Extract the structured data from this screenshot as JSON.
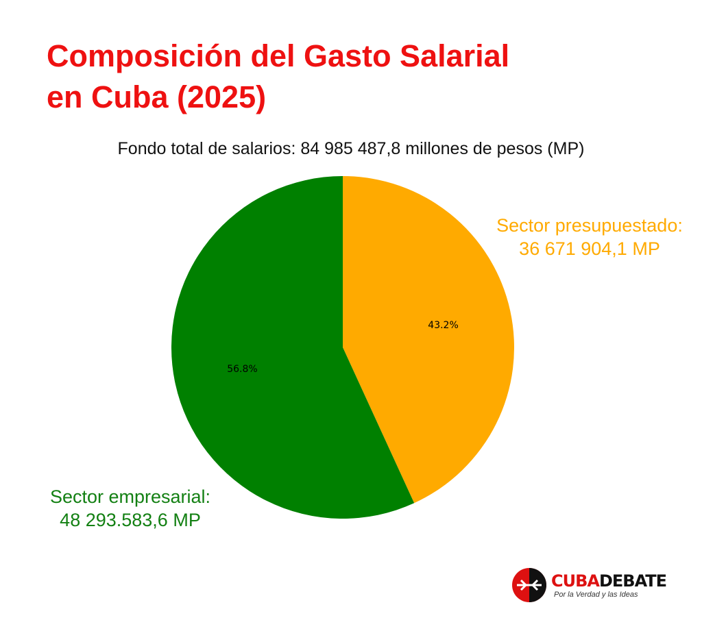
{
  "title": {
    "line1": "Composición del Gasto Salarial",
    "line2": "en Cuba (2025)"
  },
  "subtitle": "Fondo total de salarios: 84 985 487,8 millones de pesos (MP)",
  "labels": {
    "budget": {
      "line1": "Sector presupuestado:",
      "line2": "36 671 904,1 MP"
    },
    "enterprise": {
      "line1": "Sector empresarial:",
      "line2": "48 293.583,6 MP"
    }
  },
  "brand": {
    "name_part1": "CUBA",
    "name_part2": "DEBATE",
    "tagline": "Por la Verdad y las Ideas"
  },
  "colors": {
    "title": "#ee1111",
    "budget": "#ffaa00",
    "enterprise": "#008000",
    "label_enterprise_text": "#138013"
  },
  "chart_data": {
    "type": "pie",
    "title": "Composición del Gasto Salarial en Cuba (2025)",
    "subtitle": "Fondo total de salarios: 84 985 487,8 millones de pesos (MP)",
    "unit": "MP",
    "total": 84985487.8,
    "start": "top",
    "direction": "clockwise",
    "slices": [
      {
        "name": "Sector presupuestado",
        "value": 36671904.1,
        "percent_label": "43.2%",
        "color": "#ffaa00"
      },
      {
        "name": "Sector empresarial",
        "value": 48293583.6,
        "percent_label": "56.8%",
        "color": "#008000"
      }
    ]
  }
}
